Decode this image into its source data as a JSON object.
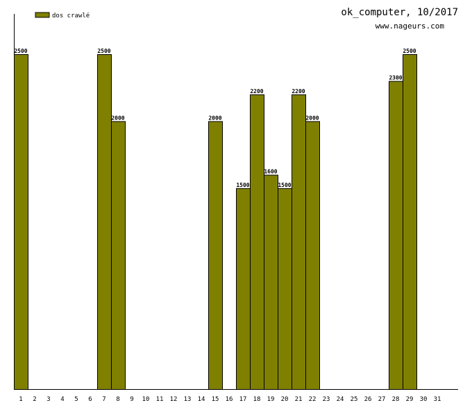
{
  "header": {
    "title": "ok_computer, 10/2017",
    "site": "www.nageurs.com"
  },
  "colors": {
    "bar_fill": "#808000",
    "bar_stroke": "#000000",
    "axis": "#000000",
    "background": "#ffffff"
  },
  "chart_data": {
    "type": "bar",
    "title": "ok_computer, 10/2017",
    "subtitle": "www.nageurs.com",
    "xlabel": "",
    "ylabel": "",
    "legend": {
      "placement": "top-left",
      "entries": [
        "dos crawlé"
      ]
    },
    "grid": false,
    "ylim": [
      0,
      2500
    ],
    "categories": [
      "1",
      "2",
      "3",
      "4",
      "5",
      "6",
      "7",
      "8",
      "9",
      "10",
      "11",
      "12",
      "13",
      "14",
      "15",
      "16",
      "17",
      "18",
      "19",
      "20",
      "21",
      "22",
      "23",
      "24",
      "25",
      "26",
      "27",
      "28",
      "29",
      "30",
      "31"
    ],
    "series": [
      {
        "name": "dos crawlé",
        "values": [
          2500,
          0,
          0,
          0,
          0,
          0,
          2500,
          2000,
          0,
          0,
          0,
          0,
          0,
          0,
          2000,
          0,
          1500,
          2200,
          1600,
          1500,
          2200,
          2000,
          0,
          0,
          0,
          0,
          0,
          2300,
          2500,
          0,
          0
        ]
      }
    ]
  }
}
